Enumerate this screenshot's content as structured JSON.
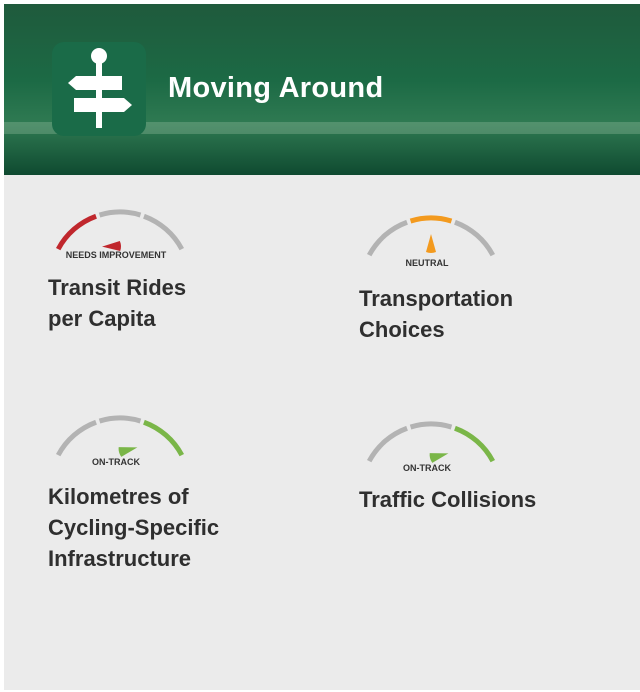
{
  "header": {
    "title": "Moving Around"
  },
  "indicators": [
    {
      "status": "NEEDS IMPROVEMENT",
      "title": "Transit Rides per Capita"
    },
    {
      "status": "NEUTRAL",
      "title": "Transportation Choices"
    },
    {
      "status": "ON-TRACK",
      "title": "Kilometres of Cycling-Specific Infrastructure"
    },
    {
      "status": "ON-TRACK",
      "title": "Traffic Collisions"
    }
  ]
}
